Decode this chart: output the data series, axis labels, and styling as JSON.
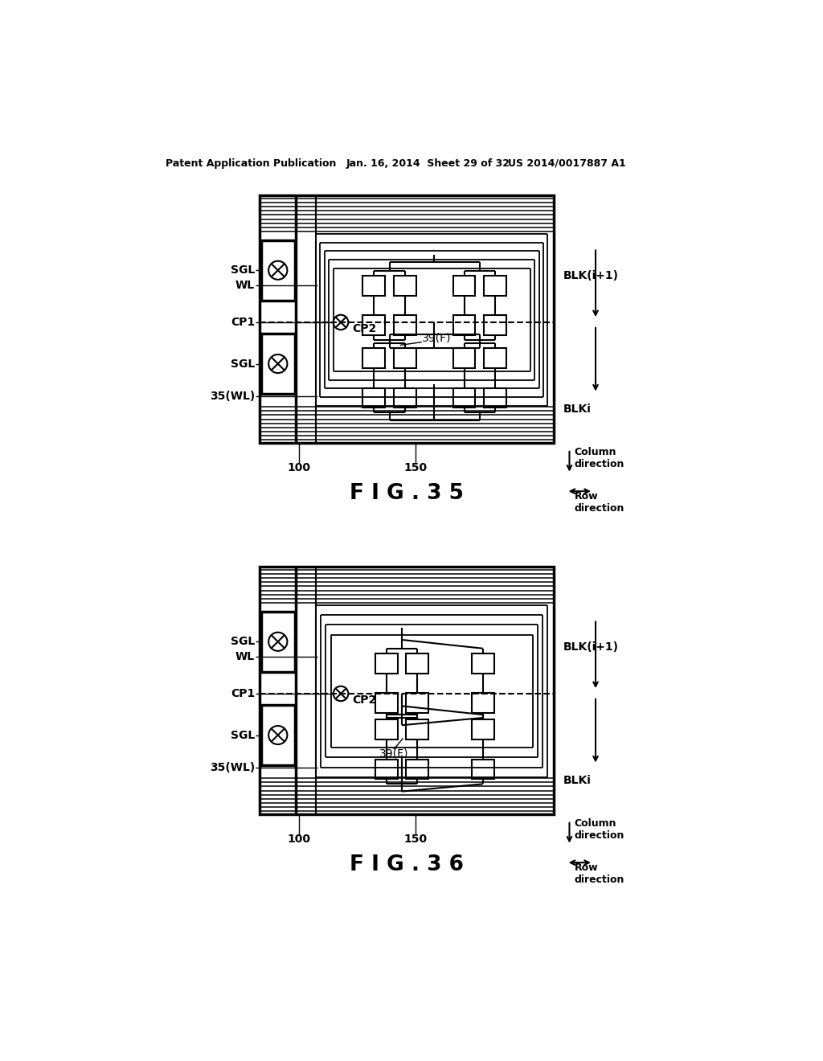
{
  "title_line1": "Patent Application Publication",
  "title_line2": "Jan. 16, 2014  Sheet 29 of 32",
  "title_line3": "US 2014/0017887 A1",
  "fig35_label": "F I G . 3 5",
  "fig36_label": "F I G . 3 6",
  "bg_color": "#ffffff"
}
